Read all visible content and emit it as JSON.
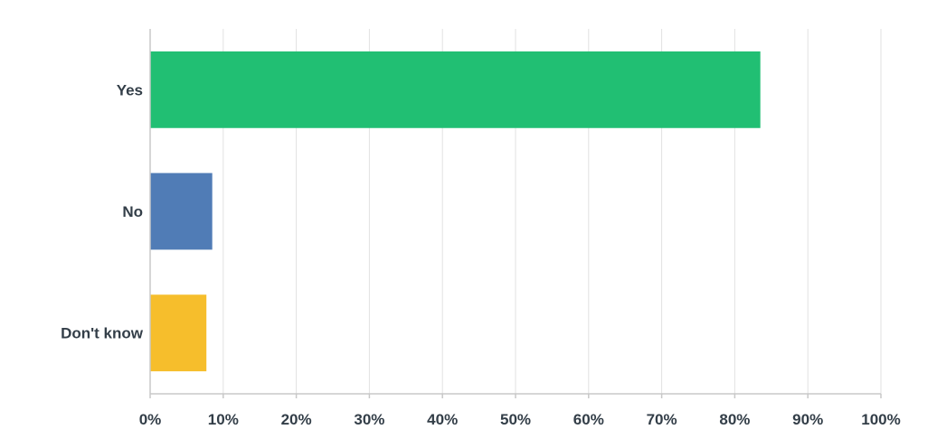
{
  "chart_data": {
    "type": "bar",
    "orientation": "horizontal",
    "categories": [
      "Yes",
      "No",
      "Don't know"
    ],
    "values": [
      83.5,
      8.5,
      7.7
    ],
    "colors": [
      "#21bf73",
      "#507cb6",
      "#f6be2c"
    ],
    "x_ticks": [
      "0%",
      "10%",
      "20%",
      "30%",
      "40%",
      "50%",
      "60%",
      "70%",
      "80%",
      "90%",
      "100%"
    ],
    "xlim": [
      0,
      100
    ],
    "grid": true,
    "title": "",
    "xlabel": "",
    "ylabel": ""
  }
}
